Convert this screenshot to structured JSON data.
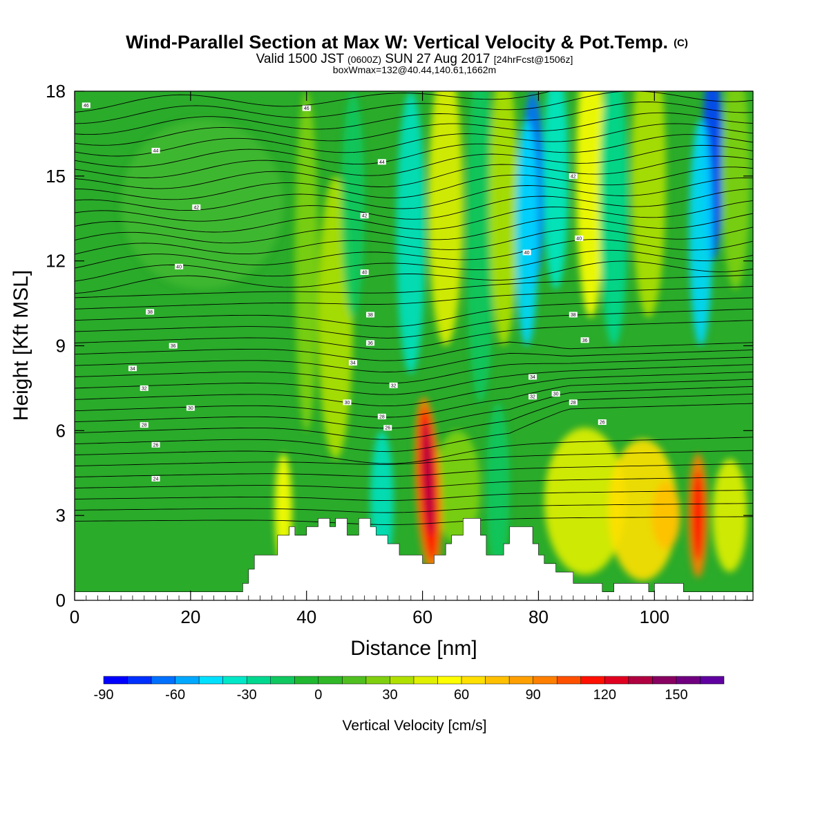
{
  "title": {
    "main": "Wind-Parallel Section at Max W: Vertical Velocity & Pot.Temp.",
    "main_mark": "(C)",
    "valid_prefix": "Valid 1500 JST",
    "valid_zulu": "(0600Z)",
    "valid_date": "SUN 27 Aug 2017",
    "forecast": "[24hrFcst@1506z]",
    "boxwmax": "boxWmax=132@40.44,140.61,1662m"
  },
  "chart_data": {
    "type": "heatmap",
    "xlabel": "Distance [nm]",
    "ylabel": "Height [Kft MSL]",
    "xlim": [
      0,
      117
    ],
    "ylim": [
      0,
      18
    ],
    "x_ticks": [
      "0",
      "20",
      "40",
      "60",
      "80",
      "100"
    ],
    "x_tick_values": [
      0,
      20,
      40,
      60,
      80,
      100
    ],
    "y_ticks": [
      "0",
      "3",
      "6",
      "9",
      "12",
      "15",
      "18"
    ],
    "y_tick_values": [
      0,
      3,
      6,
      9,
      12,
      15,
      18
    ],
    "colorbar": {
      "title": "Vertical Velocity [cm/s]",
      "ticks": [
        "-90",
        "-60",
        "-30",
        "0",
        "30",
        "60",
        "90",
        "120",
        "150"
      ],
      "tick_values": [
        -90,
        -60,
        -30,
        0,
        30,
        60,
        90,
        120,
        150
      ],
      "range": [
        -90,
        170
      ],
      "colors": [
        "#0000ff",
        "#0030ff",
        "#0070ff",
        "#00a8ff",
        "#00e0ff",
        "#00e8c8",
        "#00d890",
        "#10c860",
        "#20b830",
        "#30b828",
        "#50c020",
        "#80d010",
        "#b0e000",
        "#e0f000",
        "#ffff00",
        "#ffe000",
        "#ffc000",
        "#ffa000",
        "#ff8000",
        "#ff5000",
        "#ff1000",
        "#e00020",
        "#b00040",
        "#880060",
        "#700080",
        "#6000a0"
      ]
    },
    "contour_labels": [
      {
        "x": 2,
        "y": 17.5,
        "label": "46"
      },
      {
        "x": 40,
        "y": 17.4,
        "label": "46"
      },
      {
        "x": 14,
        "y": 15.9,
        "label": "44"
      },
      {
        "x": 53,
        "y": 15.5,
        "label": "44"
      },
      {
        "x": 86,
        "y": 15.0,
        "label": "42"
      },
      {
        "x": 21,
        "y": 13.9,
        "label": "42"
      },
      {
        "x": 50,
        "y": 13.6,
        "label": "42"
      },
      {
        "x": 87,
        "y": 12.8,
        "label": "40"
      },
      {
        "x": 78,
        "y": 12.3,
        "label": "40"
      },
      {
        "x": 18,
        "y": 11.8,
        "label": "40"
      },
      {
        "x": 50,
        "y": 11.6,
        "label": "40"
      },
      {
        "x": 13,
        "y": 10.2,
        "label": "38"
      },
      {
        "x": 51,
        "y": 10.1,
        "label": "38"
      },
      {
        "x": 86,
        "y": 10.1,
        "label": "38"
      },
      {
        "x": 17,
        "y": 9.0,
        "label": "36"
      },
      {
        "x": 51,
        "y": 9.1,
        "label": "36"
      },
      {
        "x": 88,
        "y": 9.2,
        "label": "36"
      },
      {
        "x": 10,
        "y": 8.2,
        "label": "34"
      },
      {
        "x": 48,
        "y": 8.4,
        "label": "34"
      },
      {
        "x": 79,
        "y": 7.9,
        "label": "34"
      },
      {
        "x": 12,
        "y": 7.5,
        "label": "32"
      },
      {
        "x": 55,
        "y": 7.6,
        "label": "32"
      },
      {
        "x": 79,
        "y": 7.2,
        "label": "32"
      },
      {
        "x": 83,
        "y": 7.3,
        "label": "30"
      },
      {
        "x": 20,
        "y": 6.8,
        "label": "30"
      },
      {
        "x": 47,
        "y": 7.0,
        "label": "30"
      },
      {
        "x": 86,
        "y": 7.0,
        "label": "28"
      },
      {
        "x": 12,
        "y": 6.2,
        "label": "28"
      },
      {
        "x": 53,
        "y": 6.5,
        "label": "28"
      },
      {
        "x": 91,
        "y": 6.3,
        "label": "26"
      },
      {
        "x": 14,
        "y": 5.5,
        "label": "26"
      },
      {
        "x": 54,
        "y": 6.1,
        "label": "26"
      },
      {
        "x": 14,
        "y": 4.3,
        "label": "24"
      }
    ]
  }
}
